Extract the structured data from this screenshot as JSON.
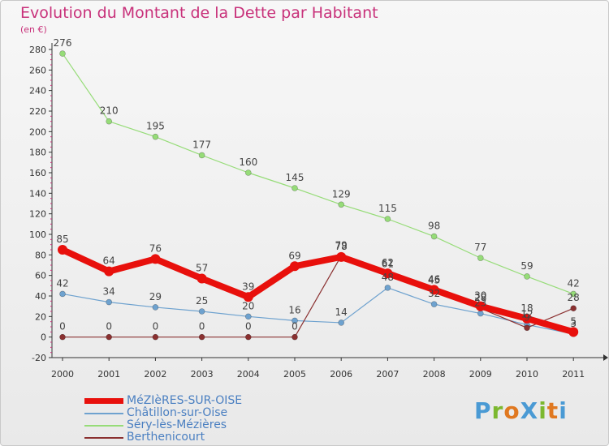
{
  "title": "Evolution du Montant de la Dette par Habitant",
  "unit": "(en €)",
  "logo": {
    "text": "ProXiti",
    "colors": [
      "#4a9ad4",
      "#7cb82f",
      "#e07820",
      "#4a9ad4",
      "#7cb82f",
      "#e07820",
      "#4a9ad4"
    ]
  },
  "chart_data": {
    "type": "line",
    "x": [
      "2000",
      "2001",
      "2002",
      "2003",
      "2004",
      "2005",
      "2006",
      "2007",
      "2008",
      "2009",
      "2010",
      "2011"
    ],
    "ylim": [
      -20,
      280
    ],
    "yticks": [
      -20,
      0,
      20,
      40,
      60,
      80,
      100,
      120,
      140,
      160,
      180,
      200,
      220,
      240,
      260,
      280
    ],
    "grid": false,
    "legend_position": "bottom-left",
    "series": [
      {
        "name": "MéZIèRES-SUR-OISE",
        "color": "#e8100c",
        "values": [
          85,
          64,
          76,
          57,
          39,
          69,
          78,
          62,
          46,
          30,
          18,
          5
        ]
      },
      {
        "name": "Châtillon-sur-Oise",
        "color": "#6ea2cf",
        "values": [
          42,
          34,
          29,
          25,
          20,
          16,
          14,
          48,
          32,
          23,
          12,
          3
        ]
      },
      {
        "name": "Séry-lès-Mézières",
        "color": "#96dc78",
        "values": [
          276,
          210,
          195,
          177,
          160,
          145,
          129,
          115,
          98,
          77,
          59,
          42
        ]
      },
      {
        "name": "Berthenicourt",
        "color": "#8a3030",
        "values": [
          0,
          0,
          0,
          0,
          0,
          0,
          79,
          61,
          45,
          28,
          9,
          28
        ]
      }
    ]
  }
}
